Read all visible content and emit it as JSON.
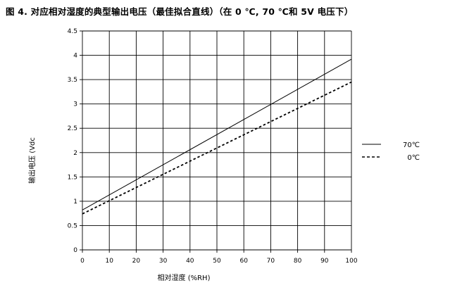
{
  "chart_data": {
    "type": "line",
    "title": "图 4. 对应相对湿度的典型输出电压（最佳拟合直线）（在 0 ℃, 70 ℃和 5V 电压下）",
    "xlabel": "相对湿度 (%RH)",
    "ylabel": "输出电压 (Vdc",
    "xlim": [
      0,
      100
    ],
    "ylim": [
      0,
      4.5
    ],
    "x_ticks": [
      "0",
      "10",
      "20",
      "30",
      "40",
      "50",
      "60",
      "70",
      "80",
      "90",
      "100"
    ],
    "y_ticks": [
      "0",
      "0.5",
      "1",
      "1.5",
      "2",
      "2.5",
      "3",
      "3.5",
      "4",
      "4.5"
    ],
    "grid": true,
    "legend_position": "right",
    "series": [
      {
        "name": "70℃",
        "style": "solid",
        "color": "#000000",
        "x": [
          0,
          100
        ],
        "y": [
          0.82,
          3.92
        ]
      },
      {
        "name": "0℃",
        "style": "dashed",
        "color": "#000000",
        "x": [
          0,
          100
        ],
        "y": [
          0.74,
          3.45
        ]
      }
    ]
  }
}
